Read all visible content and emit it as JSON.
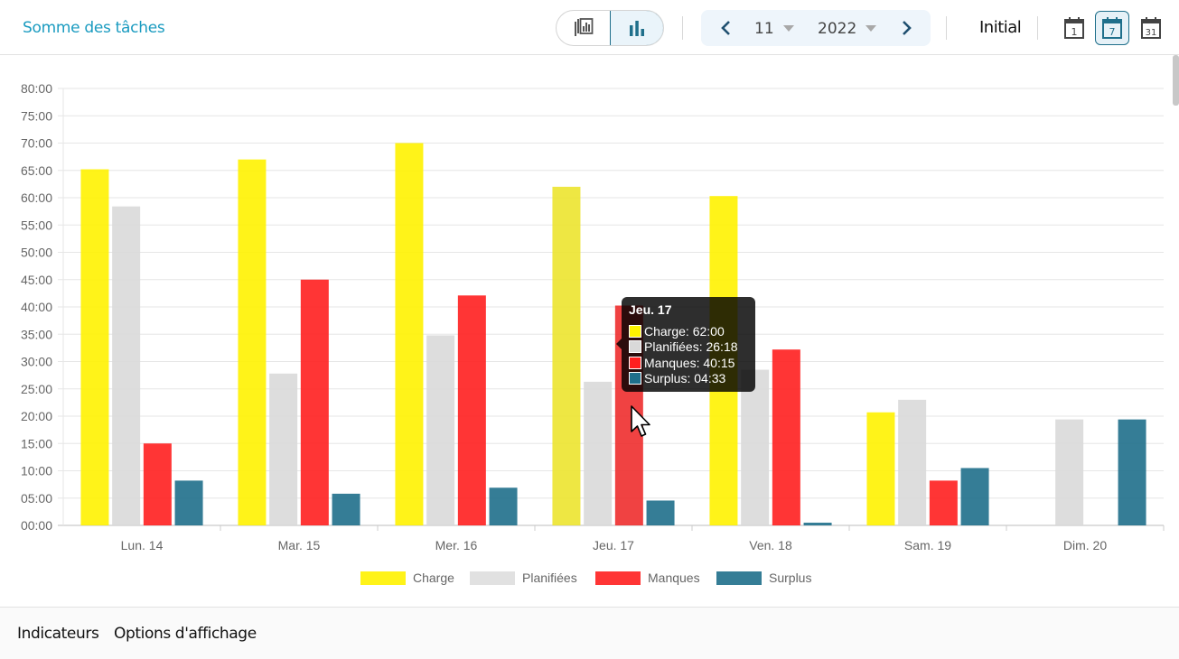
{
  "header": {
    "title": "Somme des tâches",
    "month": "11",
    "year": "2022",
    "mode": "Initial",
    "calendar_icons": [
      {
        "name": "day-view-icon",
        "label": "1"
      },
      {
        "name": "week-view-icon",
        "label": "7",
        "active": true
      },
      {
        "name": "month-view-icon",
        "label": "31"
      }
    ]
  },
  "footer": {
    "tabs": [
      "Indicateurs",
      "Options d'affichage"
    ]
  },
  "colors": {
    "accent": "#1a9bc0",
    "charge": "#fff200",
    "planifiees": "#d9d9d9",
    "manques": "#ff1f1f",
    "surplus": "#1f6f8b"
  },
  "tooltip": {
    "title": "Jeu. 17",
    "rows": [
      {
        "label": "Charge: 62:00",
        "color": "#fff200"
      },
      {
        "label": "Planifiées: 26:18",
        "color": "#d9d9d9"
      },
      {
        "label": "Manques: 40:15",
        "color": "#ff1f1f"
      },
      {
        "label": "Surplus: 04:33",
        "color": "#1f6f8b"
      }
    ]
  },
  "chart_data": {
    "type": "bar",
    "categories": [
      "Lun. 14",
      "Mar. 15",
      "Mer. 16",
      "Jeu. 17",
      "Ven. 18",
      "Sam. 19",
      "Dim. 20"
    ],
    "ylim": [
      0,
      80
    ],
    "yticks": [
      "00:00",
      "05:00",
      "10:00",
      "15:00",
      "20:00",
      "25:00",
      "30:00",
      "35:00",
      "40:00",
      "45:00",
      "50:00",
      "55:00",
      "60:00",
      "65:00",
      "70:00",
      "75:00",
      "80:00"
    ],
    "legend_position": "bottom",
    "grid": true,
    "series": [
      {
        "name": "Charge",
        "color": "#fff200",
        "values": [
          65.2,
          67,
          70,
          62,
          60.3,
          20.7,
          0
        ]
      },
      {
        "name": "Planifiées",
        "color": "#d9d9d9",
        "values": [
          58.4,
          27.8,
          34.8,
          26.3,
          28.5,
          23,
          19.4
        ]
      },
      {
        "name": "Manques",
        "color": "#ff1f1f",
        "values": [
          15,
          45,
          42.1,
          40.25,
          32.2,
          8.2,
          0
        ]
      },
      {
        "name": "Surplus",
        "color": "#1f6f8b",
        "values": [
          8.2,
          5.8,
          6.9,
          4.55,
          0.5,
          10.5,
          19.4
        ]
      }
    ]
  }
}
